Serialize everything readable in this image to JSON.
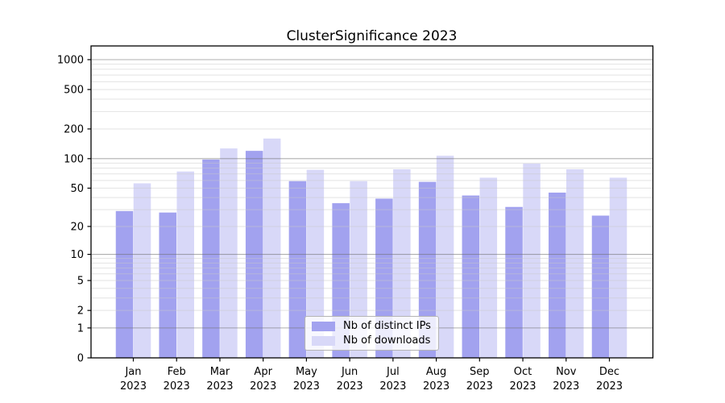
{
  "title": "ClusterSignificance 2023",
  "chart_data": {
    "type": "bar",
    "title": "ClusterSignificance 2023",
    "subtitle": "",
    "xlabel": "",
    "ylabel": "",
    "y_scale": "log1p",
    "ylim": [
      0,
      1373
    ],
    "grid": "horizontal major and minor, drawn over bars",
    "legend_position": "inside bottom-center",
    "background_color": "#ffffff",
    "axis_color": "#000000",
    "major_grid_color": "#b0b0b0",
    "minor_grid_color": "#e3e3e3",
    "yticks": [
      0,
      1,
      2,
      5,
      10,
      20,
      50,
      100,
      200,
      500,
      1000
    ],
    "x_tick_year": "2023",
    "x_tick_months": [
      "Jan",
      "Feb",
      "Mar",
      "Apr",
      "May",
      "Jun",
      "Jul",
      "Aug",
      "Sep",
      "Oct",
      "Nov",
      "Dec"
    ],
    "categories": [
      "Jan 2023",
      "Feb 2023",
      "Mar 2023",
      "Apr 2023",
      "May 2023",
      "Jun 2023",
      "Jul 2023",
      "Aug 2023",
      "Sep 2023",
      "Oct 2023",
      "Nov 2023",
      "Dec 2023"
    ],
    "series": [
      {
        "name": "Nb of distinct IPs",
        "color": "#a2a2ef",
        "values": [
          29,
          28,
          98,
          120,
          59,
          35,
          39,
          58,
          42,
          32,
          45,
          26
        ]
      },
      {
        "name": "Nb of downloads",
        "color": "#d8d8f8",
        "values": [
          56,
          74,
          127,
          160,
          77,
          59,
          78,
          107,
          64,
          89,
          78,
          64
        ]
      }
    ]
  }
}
